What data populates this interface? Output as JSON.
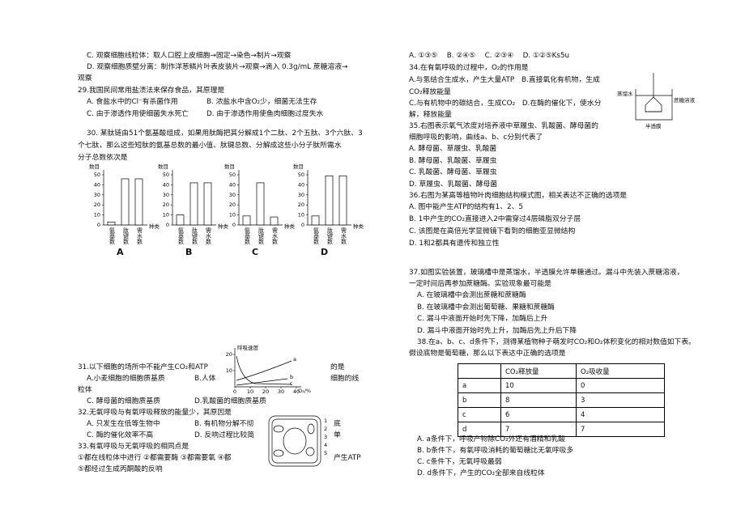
{
  "left_lines": [
    "C. 观察细胞线粒体：取人口腔上皮细胞→固定→染色→制片→观察",
    "D. 观察细胞质壁分离：制作洋葱鳞片叶表皮装片→观察→滴入 0.3g/mL 蔗糖溶液→",
    "观察",
    "29.我国民间常用盐渍法来保存食品，其原理是",
    "A. 食盐水中的Cl⁻有杀菌作用",
    "B. 浓盐水中含O₂少，细菌无法生存",
    "C. 由于渗透作用使细菌失水死亡",
    "D. 由于渗透作用使鱼肉细胞过度失水",
    "30. 某肽链由51个氨基酸组成，如果用肽酶把其分解成1个二肽、2个五肽、3个六肽、3",
    "个七肽，那么这些短肽的氨基总数的最小值、肽键总数、分解成这些小分子肽所需水",
    "分子总数依次是",
    "31.以下细胞的场所中不能产生CO₂和ATP",
    "的是",
    "A.小麦细胞的细胞质基质",
    "B.人体",
    "细胞的线",
    "粒体",
    "C. 酵母菌的细胞质基质",
    "D.乳酸菌的细胞质基质",
    "32.无氧呼吸与有氧呼吸释放的能量少，其原因是",
    "A. 只发生在低等生物中",
    "B. 有机物分解不彻",
    "底",
    "C. 酶的催化效率不高",
    "D. 反响过程比较简",
    "单",
    "33.有氧呼吸与无氧呼吸的相同点是",
    "①都在线粒体中进行 ②都需要酶 ③都需要氧 ④都",
    "产生ATP",
    "⑤都经过生成丙酮酸的反响"
  ],
  "right_lines": [
    "A. ①③⑤　 B. ②④⑤　 C. ②③④　 D. ①②⑤Ks5u",
    "34.在有氧呼吸的过程中，O₂的作用是",
    "A.与氢结合生成水，产生大量ATP　B.直接氧化有机物，生成",
    "CO₂释放能量",
    "C.与有机物中的碳结合，生成CO₂　D.在酶的催化下，使水分",
    "解，释放能量",
    "35.右图表示氧气浓度对培养液中草履虫、乳酸菌、酵母菌的",
    "细胞呼吸的影响，曲线a、b、c分别代表了",
    "A. 酵母菌、草履虫、乳酸菌",
    "B. 酵母菌、乳酸菌、草履虫",
    "C. 乳酸菌、酵母菌、草履虫",
    "D. 草履虫、乳酸菌、酵母菌",
    "36.右图为某高等植物叶肉细胞结构模式图，相关表达不正确的选项是",
    "A. 图中能产生ATP的结构有1、2、5",
    "B. 1中产生的CO₂直接进入2中需穿过4层磷脂双分子层",
    "C. 该图是在高倍光学显微镜下看到的细胞亚显微结构",
    "D. 1和2都具有遗传和独立性",
    "37.如图实验装置，玻璃槽中是蒸馏水，半透膜允许单糖通过。漏斗中先装入蔗糖溶液，",
    "一定时间后再参加蔗糖酶。实验现象最可能是",
    "A. 在玻璃槽中会测出蔗糖和蔗糖酶",
    "B. 在玻璃槽中会测出葡萄糖、果糖和蔗糖酶",
    "C. 漏斗中液面开始时先下降，加酶后上升",
    "D. 漏斗中液面开始时先上升，加酶后先上升后下降",
    "38.在a、b、c、d条件下，测得某植物种子萌发时CO₂和O₂体积变化的相对数值如下表。",
    "假设底物是葡萄糖，那么以下表达中正确的选项是",
    "A. a条件下，呼吸产物除CO₂外还有酒精和乳酸",
    "B. b条件下，有氧呼吸消耗的葡萄糖比无氧呼吸多",
    "C. c条件下，无氧呼吸最弱",
    "D. d条件下，产生的CO₂全部来自线粒体"
  ],
  "bar_y_title": "数目",
  "bar_x_title": "种类",
  "bar_categories": [
    "氨基数",
    "肽键数",
    "需水数"
  ],
  "bar_ylim": [
    0,
    50
  ],
  "bar_yticks": [
    0,
    10,
    20,
    30,
    40,
    50
  ],
  "bar_charts": [
    {
      "label": "A",
      "values": [
        3,
        46,
        46
      ]
    },
    {
      "label": "B",
      "values": [
        10,
        42,
        42
      ]
    },
    {
      "label": "C",
      "values": [
        9,
        42,
        8
      ]
    },
    {
      "label": "D",
      "values": [
        9,
        49,
        49
      ]
    }
  ],
  "resp_graph": {
    "y_title": "呼吸速度",
    "x_title": "O₂/%",
    "xticks": [
      0,
      10,
      20,
      30,
      40
    ],
    "yticks": [
      10,
      20
    ],
    "curves": [
      "a",
      "b",
      "c"
    ]
  },
  "cell_labels": [
    1,
    2,
    3,
    4,
    5
  ],
  "beaker_labels": [
    "蒸馏水",
    "蔗糖溶液",
    "半透膜"
  ],
  "table": {
    "header": [
      "CO₂释放量",
      "O₂吸收量"
    ],
    "rows": [
      [
        "a",
        10,
        0
      ],
      [
        "b",
        8,
        3
      ],
      [
        "c",
        6,
        4
      ],
      [
        "d",
        7,
        7
      ]
    ]
  }
}
